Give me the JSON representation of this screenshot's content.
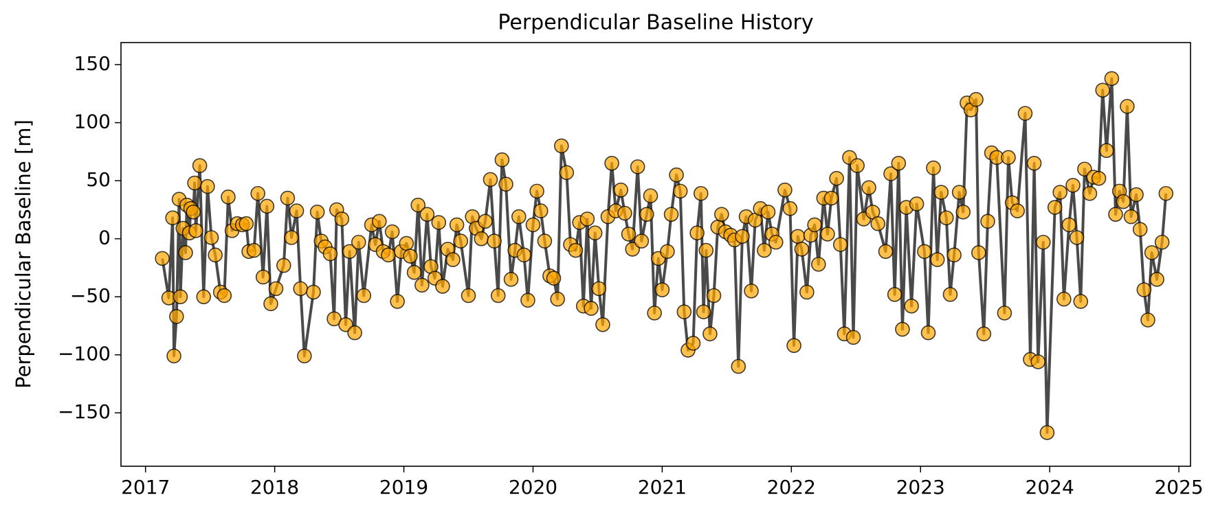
{
  "chart_data": {
    "type": "line",
    "title": "Perpendicular Baseline History",
    "y_label": "Perpendicular Baseline [m]",
    "line_color": "#404040",
    "color": "#ffa500",
    "marker_edge_color": "#000000",
    "xlim": [
      2016.81,
      2025.09
    ],
    "xticks": [
      2017,
      2018,
      2019,
      2020,
      2021,
      2022,
      2023,
      2024,
      2025
    ],
    "ylim": [
      -196,
      169
    ],
    "yticks": [
      {
        "value": -150,
        "label": "−150"
      },
      {
        "value": -100,
        "label": "−100"
      },
      {
        "value": -50,
        "label": "−50"
      },
      0,
      50,
      100,
      150
    ],
    "grid": false,
    "x": [
      2017.13,
      2017.18,
      2017.21,
      2017.22,
      2017.24,
      2017.26,
      2017.27,
      2017.29,
      2017.31,
      2017.32,
      2017.34,
      2017.35,
      2017.37,
      2017.38,
      2017.39,
      2017.42,
      2017.45,
      2017.48,
      2017.51,
      2017.54,
      2017.58,
      2017.61,
      2017.64,
      2017.67,
      2017.71,
      2017.75,
      2017.78,
      2017.8,
      2017.84,
      2017.87,
      2017.91,
      2017.94,
      2017.97,
      2018.01,
      2018.07,
      2018.1,
      2018.13,
      2018.17,
      2018.2,
      2018.23,
      2018.3,
      2018.33,
      2018.36,
      2018.39,
      2018.43,
      2018.46,
      2018.48,
      2018.52,
      2018.55,
      2018.58,
      2018.62,
      2018.65,
      2018.69,
      2018.75,
      2018.78,
      2018.81,
      2018.84,
      2018.88,
      2018.91,
      2018.95,
      2018.98,
      2019.02,
      2019.05,
      2019.08,
      2019.11,
      2019.14,
      2019.18,
      2019.21,
      2019.24,
      2019.27,
      2019.3,
      2019.34,
      2019.38,
      2019.41,
      2019.44,
      2019.5,
      2019.53,
      2019.56,
      2019.6,
      2019.63,
      2019.67,
      2019.7,
      2019.73,
      2019.76,
      2019.79,
      2019.83,
      2019.86,
      2019.89,
      2019.93,
      2019.96,
      2020.0,
      2020.03,
      2020.06,
      2020.09,
      2020.13,
      2020.16,
      2020.19,
      2020.22,
      2020.26,
      2020.29,
      2020.33,
      2020.36,
      2020.39,
      2020.42,
      2020.45,
      2020.48,
      2020.51,
      2020.54,
      2020.58,
      2020.61,
      2020.64,
      2020.68,
      2020.71,
      2020.74,
      2020.77,
      2020.81,
      2020.84,
      2020.88,
      2020.91,
      2020.94,
      2020.97,
      2021.0,
      2021.04,
      2021.07,
      2021.11,
      2021.14,
      2021.17,
      2021.2,
      2021.24,
      2021.27,
      2021.3,
      2021.32,
      2021.34,
      2021.37,
      2021.4,
      2021.43,
      2021.46,
      2021.49,
      2021.53,
      2021.56,
      2021.59,
      2021.62,
      2021.65,
      2021.69,
      2021.72,
      2021.76,
      2021.79,
      2021.82,
      2021.85,
      2021.88,
      2021.95,
      2021.99,
      2022.02,
      2022.05,
      2022.08,
      2022.12,
      2022.15,
      2022.18,
      2022.21,
      2022.25,
      2022.28,
      2022.31,
      2022.35,
      2022.38,
      2022.41,
      2022.45,
      2022.48,
      2022.51,
      2022.56,
      2022.6,
      2022.63,
      2022.67,
      2022.73,
      2022.77,
      2022.8,
      2022.83,
      2022.86,
      2022.89,
      2022.93,
      2022.97,
      2023.03,
      2023.06,
      2023.1,
      2023.13,
      2023.16,
      2023.2,
      2023.23,
      2023.26,
      2023.3,
      2023.33,
      2023.36,
      2023.39,
      2023.43,
      2023.45,
      2023.49,
      2023.52,
      2023.55,
      2023.59,
      2023.65,
      2023.68,
      2023.71,
      2023.75,
      2023.81,
      2023.85,
      2023.88,
      2023.91,
      2023.95,
      2023.98,
      2024.04,
      2024.08,
      2024.11,
      2024.15,
      2024.18,
      2024.21,
      2024.24,
      2024.27,
      2024.31,
      2024.34,
      2024.38,
      2024.41,
      2024.44,
      2024.48,
      2024.51,
      2024.54,
      2024.57,
      2024.6,
      2024.63,
      2024.67,
      2024.7,
      2024.73,
      2024.76,
      2024.79,
      2024.83,
      2024.87,
      2024.9
    ],
    "values": [
      -17,
      -51,
      18,
      -101,
      -67,
      34,
      -50,
      9,
      -12,
      29,
      5,
      26,
      23,
      48,
      7,
      63,
      -50,
      45,
      1,
      -14,
      -46,
      -49,
      36,
      7,
      13,
      12,
      13,
      -11,
      -10,
      39,
      -33,
      28,
      -56,
      -43,
      -23,
      35,
      1,
      24,
      -43,
      -101,
      -46,
      23,
      -2,
      -7,
      -13,
      -69,
      25,
      17,
      -74,
      -11,
      -81,
      -3,
      -49,
      12,
      -5,
      15,
      -11,
      -14,
      6,
      -54,
      -11,
      -4,
      -15,
      -29,
      29,
      -40,
      21,
      -24,
      -34,
      14,
      -41,
      -9,
      -18,
      12,
      -2,
      -49,
      19,
      9,
      0,
      15,
      51,
      -2,
      -49,
      68,
      47,
      -35,
      -10,
      19,
      -14,
      -53,
      12,
      41,
      24,
      -2,
      -32,
      -34,
      -52,
      80,
      57,
      -5,
      -10,
      14,
      -58,
      17,
      -60,
      5,
      -43,
      -74,
      19,
      65,
      24,
      42,
      22,
      4,
      -9,
      62,
      -2,
      21,
      37,
      -64,
      -17,
      -44,
      -11,
      21,
      55,
      41,
      -63,
      -96,
      -90,
      5,
      39,
      -63,
      -10,
      -82,
      -49,
      10,
      21,
      6,
      3,
      -1,
      -110,
      2,
      19,
      -45,
      16,
      26,
      -10,
      23,
      4,
      -3,
      42,
      26,
      -92,
      2,
      -9,
      -46,
      3,
      12,
      -22,
      35,
      4,
      35,
      52,
      -5,
      -82,
      70,
      -85,
      63,
      17,
      44,
      23,
      13,
      -11,
      56,
      -48,
      65,
      -78,
      27,
      -58,
      30,
      -11,
      -81,
      61,
      -18,
      40,
      18,
      -48,
      -14,
      40,
      23,
      117,
      111,
      120,
      -12,
      -82,
      15,
      74,
      70,
      -64,
      70,
      31,
      24,
      108,
      -104,
      65,
      -106,
      -3,
      -167,
      27,
      40,
      -52,
      12,
      46,
      1,
      -54,
      60,
      39,
      53,
      52,
      128,
      76,
      138,
      21,
      41,
      32,
      114,
      19,
      38,
      8,
      -44,
      -70,
      -12,
      -35,
      -3,
      39
    ]
  }
}
